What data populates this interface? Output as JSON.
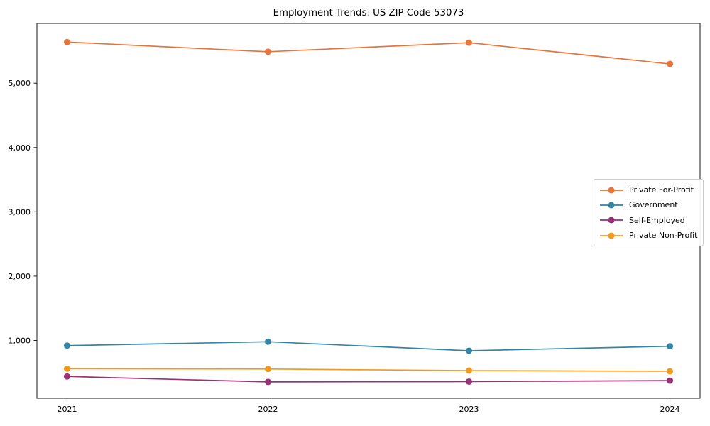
{
  "chart_data": {
    "type": "line",
    "title": "Employment Trends: US ZIP Code 53073",
    "xlabel": "",
    "ylabel": "",
    "x": [
      2021,
      2022,
      2023,
      2024
    ],
    "series": [
      {
        "name": "Private For-Profit",
        "color": "#E8743C",
        "values": [
          5640,
          5490,
          5630,
          5300
        ]
      },
      {
        "name": "Government",
        "color": "#3385A6",
        "values": [
          920,
          980,
          840,
          910
        ]
      },
      {
        "name": "Self-Employed",
        "color": "#9A3075",
        "values": [
          440,
          355,
          360,
          375
        ]
      },
      {
        "name": "Private Non-Profit",
        "color": "#EF9B1E",
        "values": [
          560,
          555,
          530,
          520
        ]
      }
    ],
    "xlim": [
      2020.85,
      2024.15
    ],
    "ylim": [
      100,
      5930
    ],
    "xticks": [
      2021,
      2022,
      2023,
      2024
    ],
    "xtick_labels": [
      "2021",
      "2022",
      "2023",
      "2024"
    ],
    "yticks": [
      1000,
      2000,
      3000,
      4000,
      5000
    ],
    "ytick_labels": [
      "1,000",
      "2,000",
      "3,000",
      "4,000",
      "5,000"
    ],
    "grid": false,
    "legend_position": "center right",
    "axis_color": "#1a1a1a"
  }
}
